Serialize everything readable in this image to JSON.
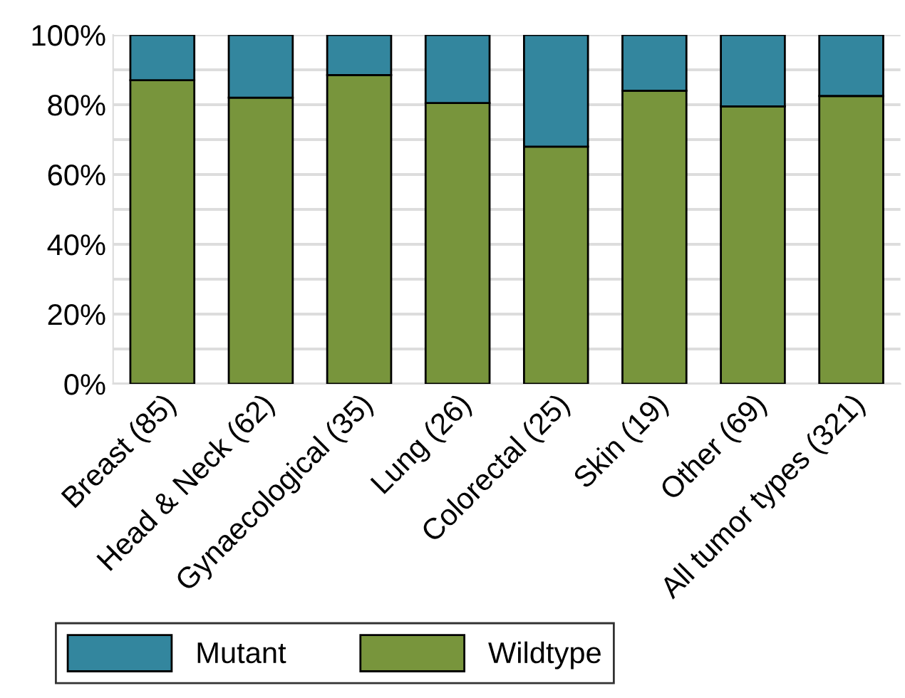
{
  "chart_data": {
    "type": "bar",
    "stacked": true,
    "categories": [
      "Breast (85)",
      "Head & Neck (62)",
      "Gynaecological (35)",
      "Lung (26)",
      "Colorectal (25)",
      "Skin (19)",
      "Other (69)",
      "All tumor types (321)"
    ],
    "series": [
      {
        "name": "Wildtype",
        "color": "#78953c",
        "values": [
          87,
          82,
          88.5,
          80.5,
          68,
          84,
          79.5,
          82.5
        ]
      },
      {
        "name": "Mutant",
        "color": "#33869e",
        "values": [
          13,
          18,
          11.5,
          19.5,
          32,
          16,
          20.5,
          17.5
        ]
      }
    ],
    "ylim": [
      0,
      100
    ],
    "yticks": [
      {
        "value": 0,
        "label": "0%"
      },
      {
        "value": 10,
        "label": null
      },
      {
        "value": 20,
        "label": "20%"
      },
      {
        "value": 30,
        "label": null
      },
      {
        "value": 40,
        "label": "40%"
      },
      {
        "value": 50,
        "label": null
      },
      {
        "value": 60,
        "label": "60%"
      },
      {
        "value": 70,
        "label": null
      },
      {
        "value": 80,
        "label": "80%"
      },
      {
        "value": 90,
        "label": null
      },
      {
        "value": 100,
        "label": "100%"
      }
    ],
    "grid": "y",
    "legend": "bottom"
  }
}
